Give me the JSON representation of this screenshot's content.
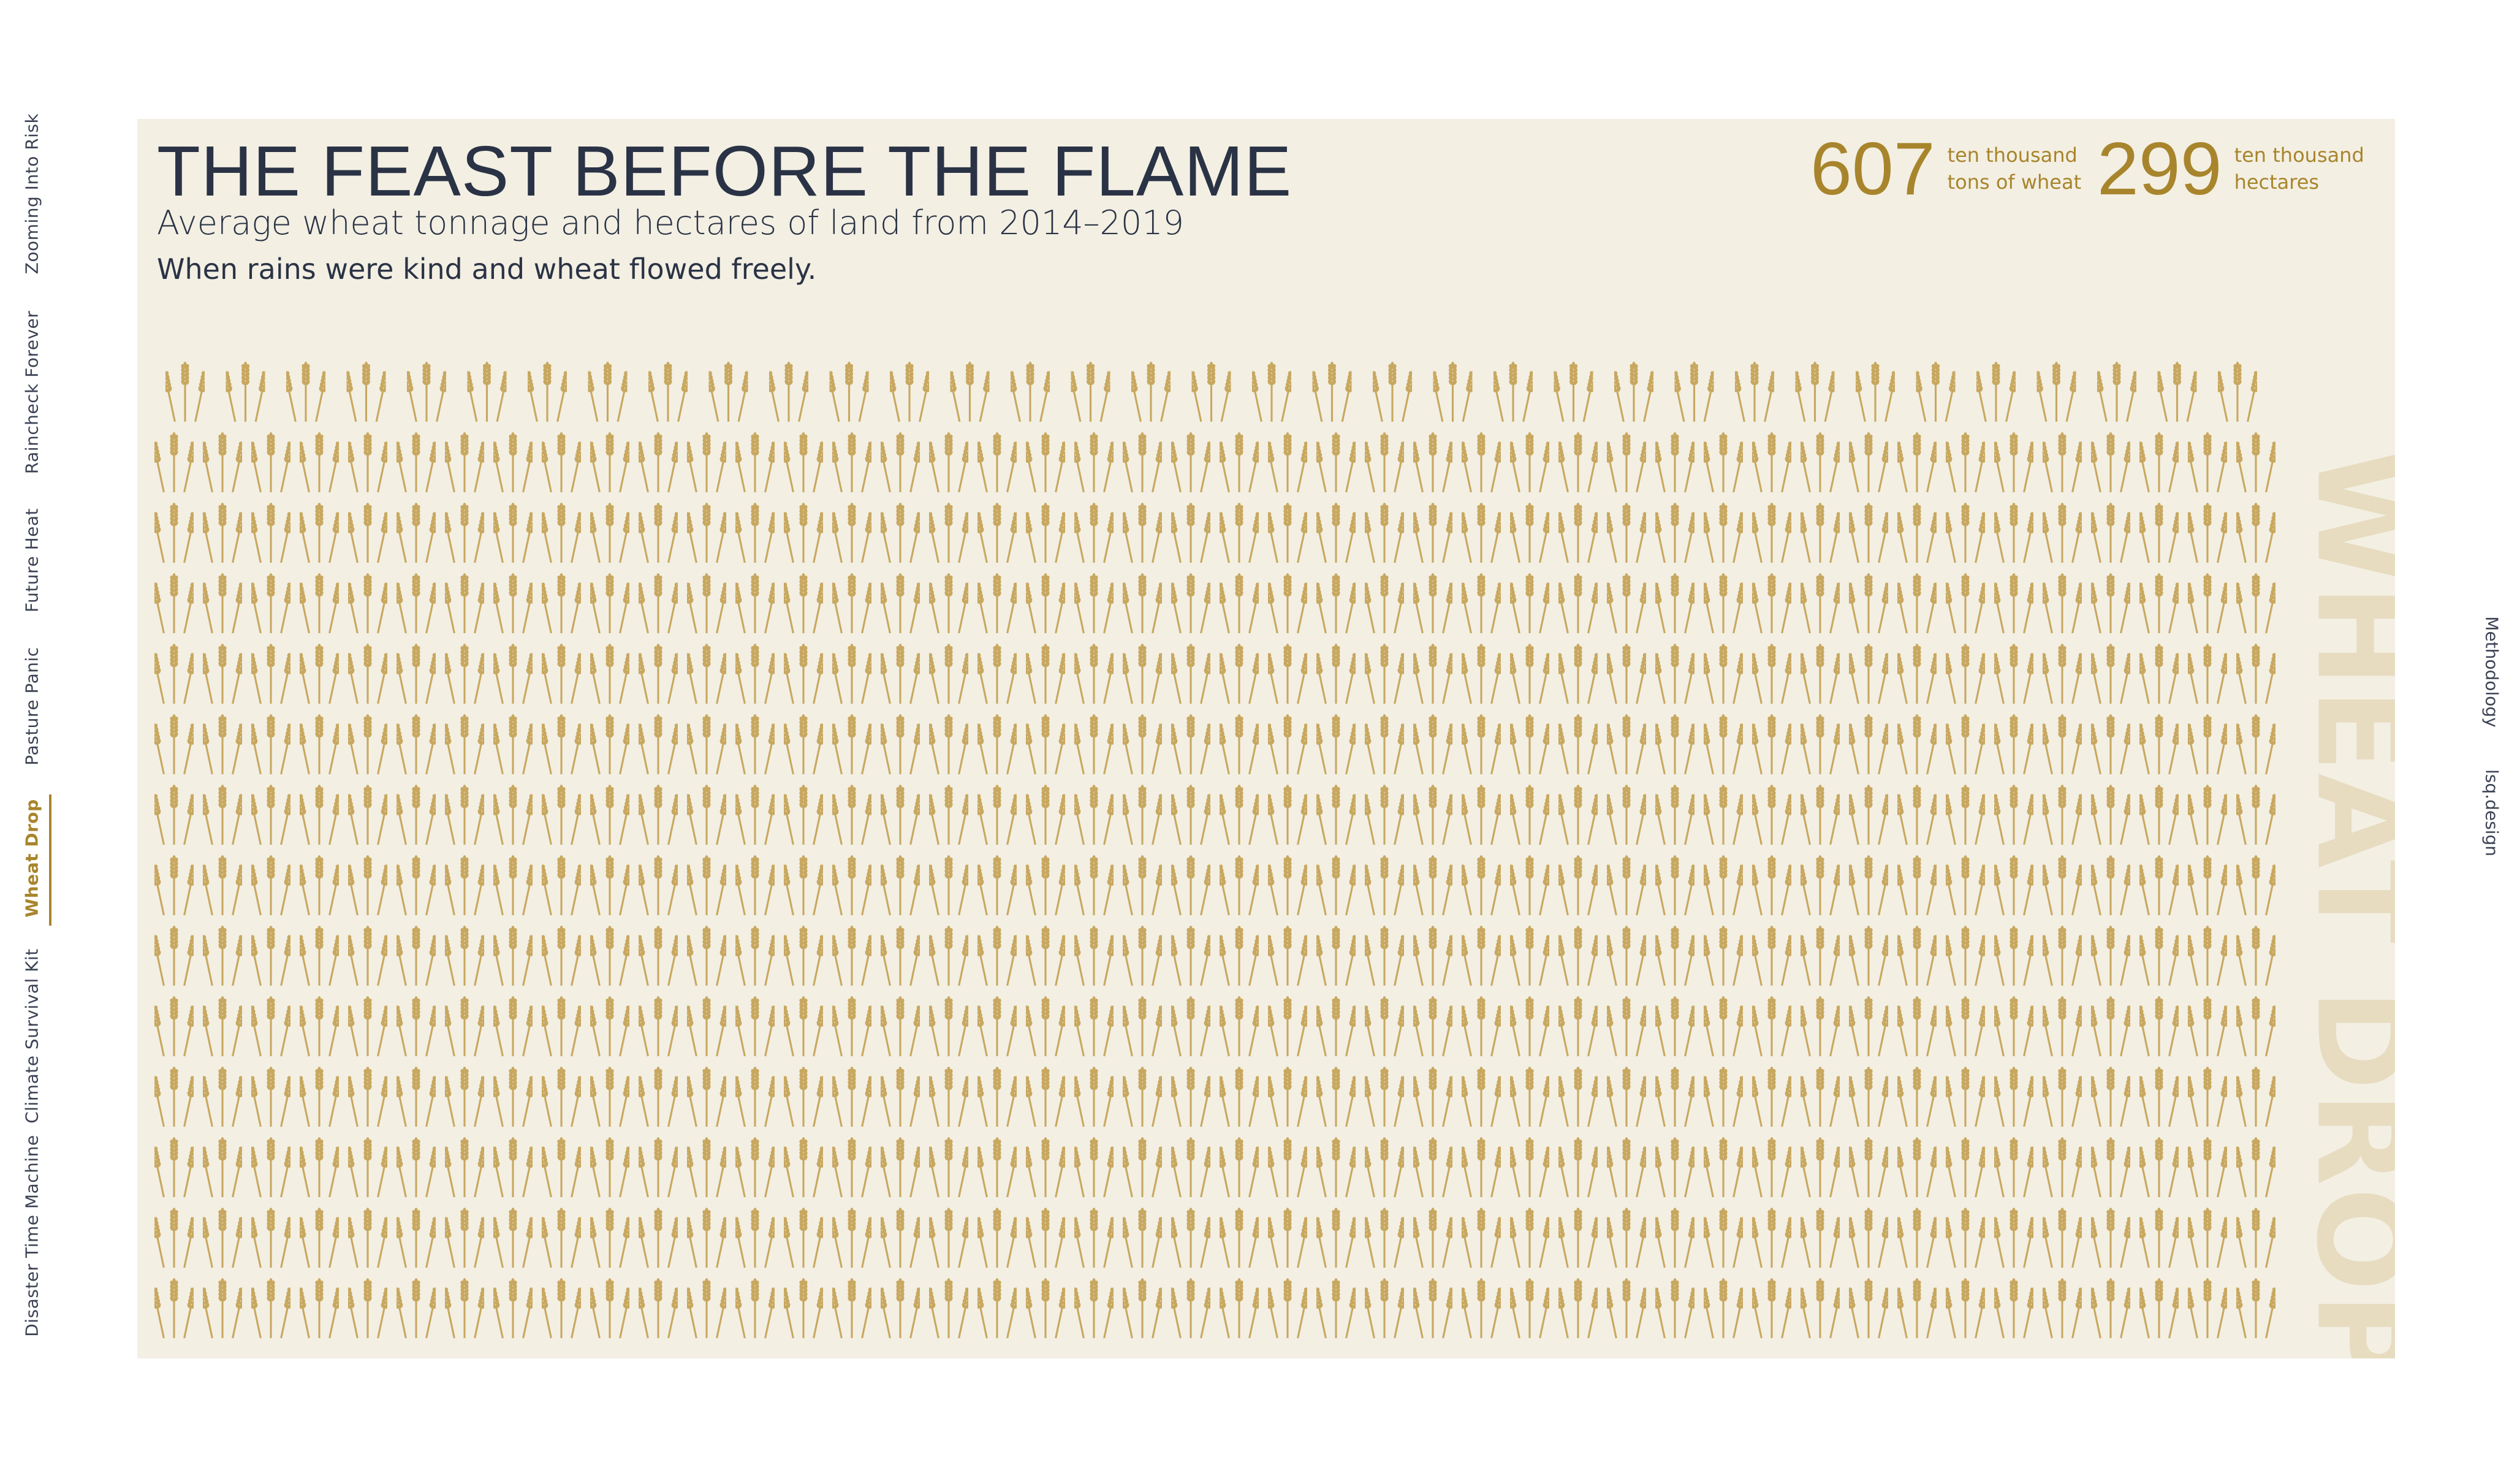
{
  "left_nav": {
    "items": [
      {
        "label": "Zooming Into Risk",
        "active": false
      },
      {
        "label": "Raincheck Forever",
        "active": false
      },
      {
        "label": "Future Heat",
        "active": false
      },
      {
        "label": "Pasture Panic",
        "active": false
      },
      {
        "label": "Wheat Drop",
        "active": true
      },
      {
        "label": "Climate Survival Kit",
        "active": false
      },
      {
        "label": "Disaster Time Machine",
        "active": false
      }
    ]
  },
  "right_nav": {
    "items": [
      {
        "label": "Methodology"
      },
      {
        "label": "lsq.design"
      }
    ]
  },
  "panel": {
    "title": "THE FEAST BEFORE THE FLAME",
    "subtitle": "Average wheat tonnage and hectares of land from 2014–2019",
    "tagline": "When rains were kind and wheat flowed freely.",
    "stats": [
      {
        "value": "607",
        "label_line1": "ten thousand",
        "label_line2": "tons of wheat"
      },
      {
        "value": "299",
        "label_line1": "ten thousand",
        "label_line2": "hectares"
      }
    ],
    "watermark": "WHEAT DROP"
  },
  "colors": {
    "accent": "#a8852c",
    "panel_bg": "#f3efe3",
    "text_dark": "#2a3345",
    "wheat": "#c8a860",
    "watermark": "#e7dcc0"
  },
  "chart_data": {
    "type": "pictogram",
    "icon": "wheat-icon",
    "rows": [
      {
        "row": 1,
        "icons": 35
      },
      {
        "row": 2,
        "icons": 44
      },
      {
        "row": 3,
        "icons": 44
      },
      {
        "row": 4,
        "icons": 44
      },
      {
        "row": 5,
        "icons": 44
      },
      {
        "row": 6,
        "icons": 44
      },
      {
        "row": 7,
        "icons": 44
      },
      {
        "row": 8,
        "icons": 44
      },
      {
        "row": 9,
        "icons": 44
      },
      {
        "row": 10,
        "icons": 44
      },
      {
        "row": 11,
        "icons": 44
      },
      {
        "row": 12,
        "icons": 44
      },
      {
        "row": 13,
        "icons": 44
      },
      {
        "row": 14,
        "icons": 44
      }
    ]
  }
}
